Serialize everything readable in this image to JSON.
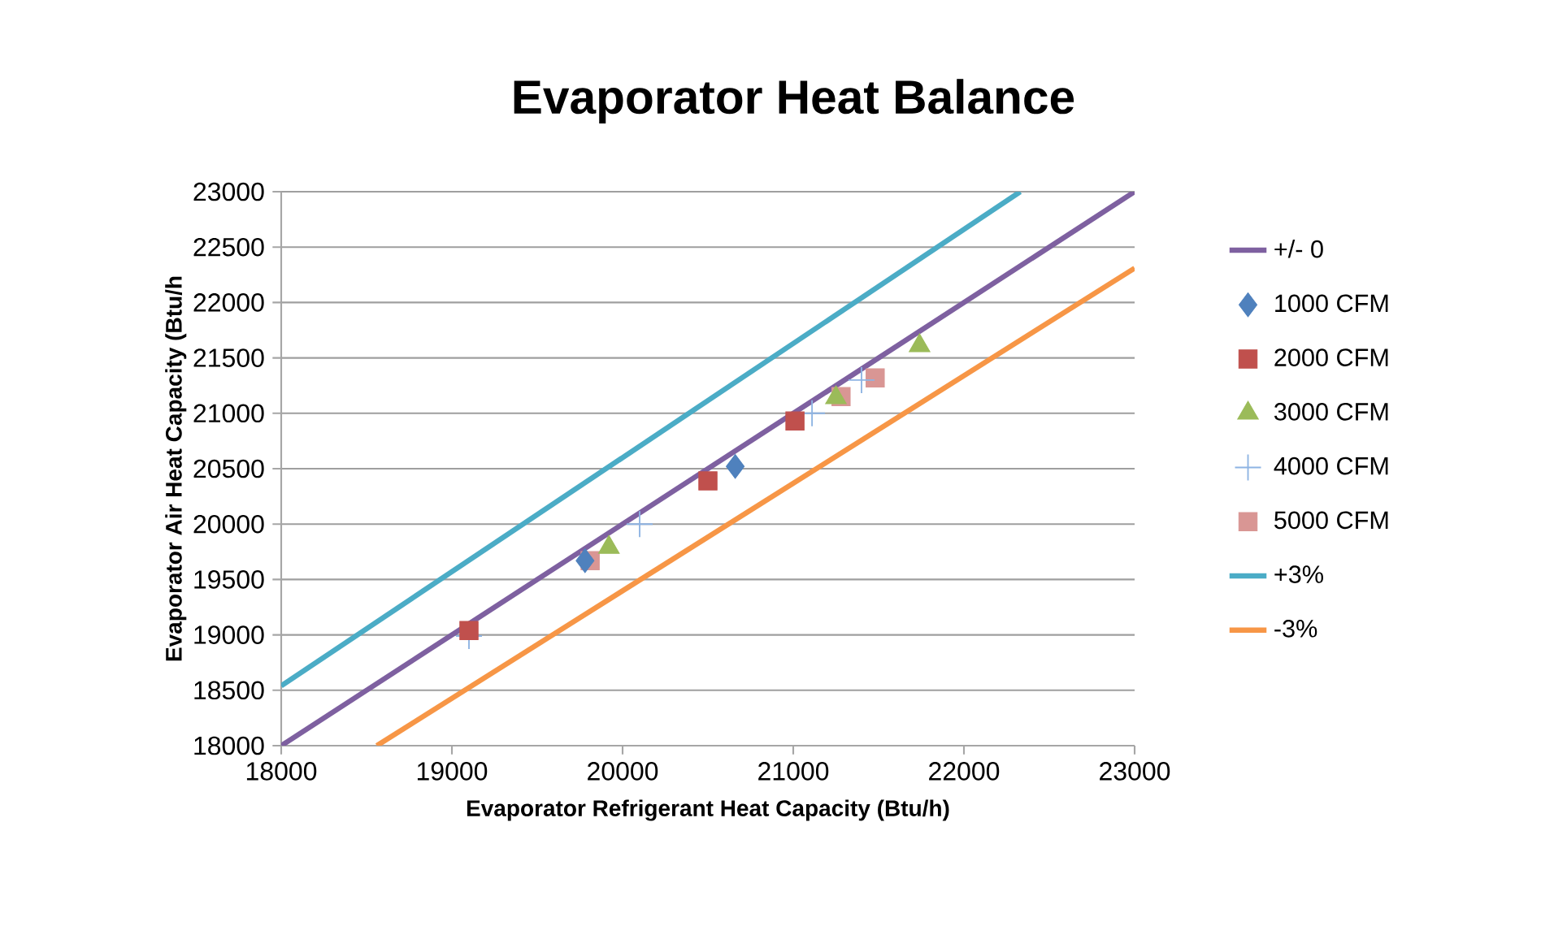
{
  "chart_data": {
    "type": "scatter",
    "title": "Evaporator Heat Balance",
    "xlabel": "Evaporator  Refrigerant Heat Capacity (Btu/h)",
    "ylabel": "Evaporator  Air Heat Capacity  (Btu/h",
    "xlim": [
      18000,
      23000
    ],
    "ylim": [
      18000,
      23000
    ],
    "xticks": [
      18000,
      19000,
      20000,
      21000,
      22000,
      23000
    ],
    "yticks": [
      18000,
      18500,
      19000,
      19500,
      20000,
      20500,
      21000,
      21500,
      22000,
      22500,
      23000
    ],
    "grid": "y",
    "legend": "right",
    "series": [
      {
        "name": "+/- 0",
        "type": "line",
        "marker": "none",
        "color": "#7e60a0",
        "x": [
          18000,
          23000
        ],
        "values": [
          18000,
          23000
        ]
      },
      {
        "name": "1000 CFM",
        "marker": "diamond",
        "color": "#4f81bd",
        "x": [
          19780,
          20660
        ],
        "values": [
          19670,
          20520
        ]
      },
      {
        "name": "2000 CFM",
        "marker": "square",
        "color": "#c0504d",
        "x": [
          19100,
          20500,
          21010
        ],
        "values": [
          19040,
          20390,
          20930
        ]
      },
      {
        "name": "3000 CFM",
        "marker": "triangle",
        "color": "#9bbb59",
        "x": [
          19920,
          21250,
          21740
        ],
        "values": [
          19790,
          21140,
          21610
        ]
      },
      {
        "name": "4000 CFM",
        "marker": "cross",
        "color": "#8eb4e3",
        "x": [
          19100,
          20100,
          21110,
          21400
        ],
        "values": [
          18990,
          20000,
          21000,
          21300
        ]
      },
      {
        "name": "5000 CFM",
        "marker": "square",
        "color": "#d99694",
        "x": [
          19810,
          21280,
          21480
        ],
        "values": [
          19670,
          21150,
          21320
        ]
      },
      {
        "name": "+3%",
        "type": "line",
        "marker": "none",
        "color": "#4bacc6",
        "x": [
          18000,
          22330
        ],
        "values": [
          18540,
          23000
        ]
      },
      {
        "name": "-3%",
        "type": "line",
        "marker": "none",
        "color": "#f79646",
        "x": [
          18560,
          23000
        ],
        "values": [
          18000,
          22310
        ]
      }
    ]
  }
}
